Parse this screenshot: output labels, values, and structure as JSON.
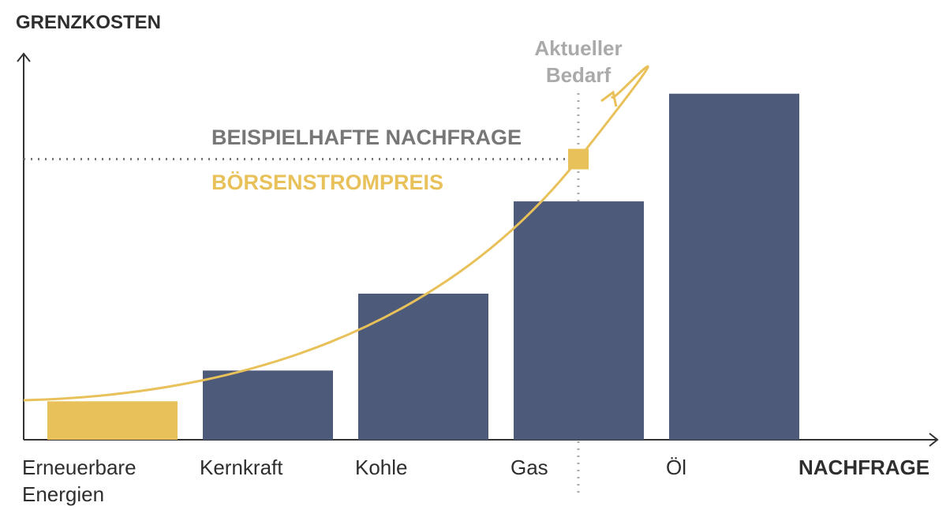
{
  "chart_data": {
    "type": "bar",
    "y_axis_label": "GRENZKOSTEN",
    "x_axis_label": "NACHFRAGE",
    "categories": [
      "Erneuerbare Energien",
      "Kernkraft",
      "Kohle",
      "Gas",
      "Öl"
    ],
    "values": [
      10,
      18,
      38,
      62,
      90
    ],
    "colors": [
      "#e8c15a",
      "#4e5a7a",
      "#4e5a7a",
      "#4e5a7a",
      "#4e5a7a"
    ],
    "ylim": [
      0,
      100
    ],
    "price_level": 73,
    "demand_label": "BEISPIELHAFTE NACHFRAGE",
    "price_label": "BÖRSENSTROMPREIS",
    "current_demand_label": "Aktueller Bedarf"
  }
}
